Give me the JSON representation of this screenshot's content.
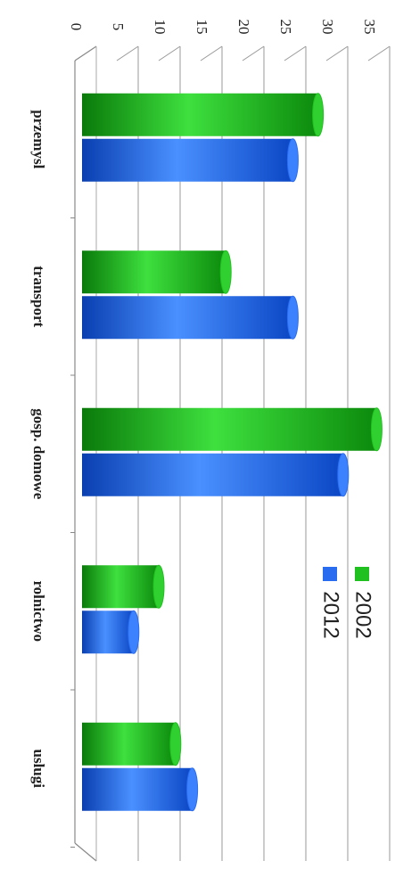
{
  "chart_data": {
    "type": "bar",
    "orientation": "rotated-90-clockwise",
    "categories": [
      "przemysl",
      "transport",
      "gosp. domowe",
      "rolnictwo",
      "uslugi"
    ],
    "series": [
      {
        "name": "2002",
        "color": "#1fc01f",
        "values": [
          29,
          18,
          36,
          10,
          12
        ]
      },
      {
        "name": "2012",
        "color": "#2a6cf0",
        "values": [
          26,
          26,
          32,
          7,
          14
        ]
      }
    ],
    "y_ticks": [
      0,
      5,
      10,
      15,
      20,
      25,
      30,
      35
    ],
    "ylim": [
      0,
      35
    ],
    "grid": true,
    "legend_position": "right"
  }
}
